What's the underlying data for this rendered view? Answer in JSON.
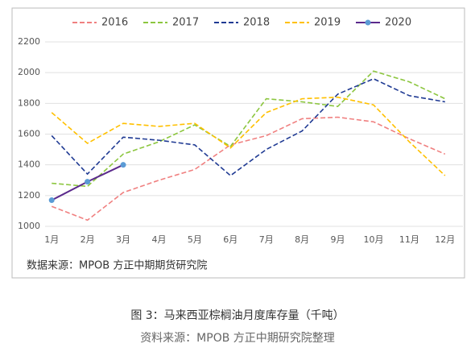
{
  "chart_data": {
    "type": "line",
    "categories": [
      "1月",
      "2月",
      "3月",
      "4月",
      "5月",
      "6月",
      "7月",
      "8月",
      "9月",
      "10月",
      "11月",
      "12月"
    ],
    "series": [
      {
        "name": "2016",
        "color": "#f08080",
        "style": "dashed",
        "values": [
          1130,
          1040,
          1220,
          1300,
          1370,
          1530,
          1590,
          1700,
          1710,
          1680,
          1570,
          1470
        ]
      },
      {
        "name": "2017",
        "color": "#8cc63f",
        "style": "dashed",
        "values": [
          1280,
          1260,
          1470,
          1550,
          1660,
          1520,
          1830,
          1810,
          1780,
          2010,
          1940,
          1830
        ]
      },
      {
        "name": "2018",
        "color": "#1f3a93",
        "style": "dashed",
        "values": [
          1590,
          1340,
          1580,
          1560,
          1530,
          1330,
          1500,
          1620,
          1860,
          1960,
          1850,
          1810
        ]
      },
      {
        "name": "2019",
        "color": "#ffc000",
        "style": "dashed",
        "values": [
          1740,
          1540,
          1670,
          1650,
          1670,
          1510,
          1740,
          1830,
          1840,
          1790,
          1550,
          1330
        ]
      },
      {
        "name": "2020",
        "color": "#5b2a8c",
        "style": "solid",
        "markers": true,
        "values": [
          1170,
          1290,
          1400,
          null,
          null,
          null,
          null,
          null,
          null,
          null,
          null,
          null
        ]
      }
    ],
    "ylim": [
      1000,
      2200
    ],
    "yticks": [
      1000,
      1200,
      1400,
      1600,
      1800,
      2000,
      2200
    ],
    "grid": true,
    "legend": "top",
    "source": "数据来源：MPOB   方正中期期货研究院"
  },
  "caption": "图 3：马来西亚棕榈油月度库存量（千吨）",
  "caption_source": "资料来源：MPOB  方正中期研究院整理"
}
